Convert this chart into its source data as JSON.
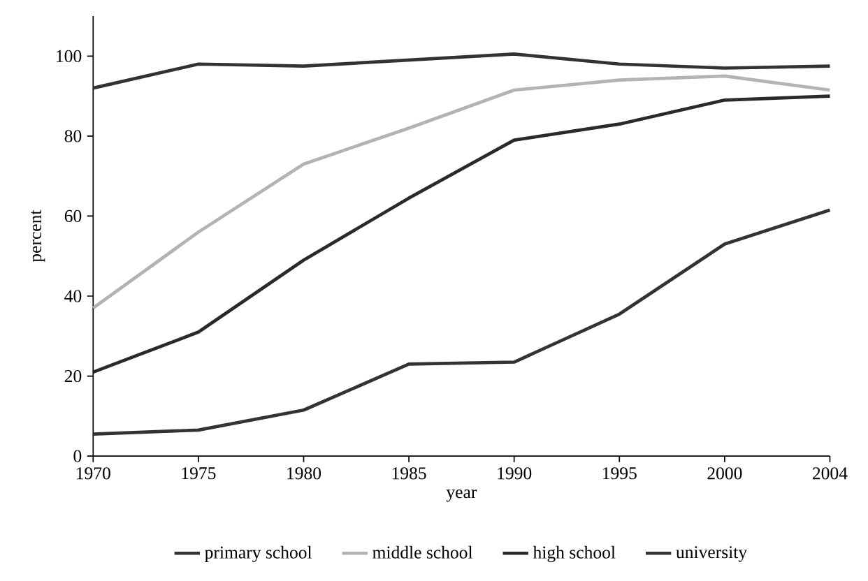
{
  "chart_data": {
    "type": "line",
    "xlabel": "year",
    "ylabel": "percent",
    "categories": [
      "1970",
      "1975",
      "1980",
      "1985",
      "1990",
      "1995",
      "2000",
      "2004"
    ],
    "ylim": [
      0,
      110
    ],
    "yticks": [
      0,
      20,
      40,
      60,
      80,
      100
    ],
    "legend": "bottom",
    "grid": false,
    "marker": "none",
    "line_style": "solid",
    "series": [
      {
        "name": "primary school",
        "color": "#333333",
        "values": [
          92,
          98,
          97.5,
          99,
          100.5,
          98,
          97,
          97.5
        ]
      },
      {
        "name": "middle school",
        "color": "#b3b3b3",
        "values": [
          37,
          56,
          73,
          82,
          91.5,
          94,
          95,
          91.5
        ]
      },
      {
        "name": "high school",
        "color": "#2a2a2a",
        "values": [
          21,
          31,
          49,
          64.5,
          79,
          83,
          89,
          90
        ]
      },
      {
        "name": "university",
        "color": "#333333",
        "values": [
          5.5,
          6.5,
          11.5,
          23,
          23.5,
          35.5,
          53,
          61.5
        ]
      }
    ]
  }
}
